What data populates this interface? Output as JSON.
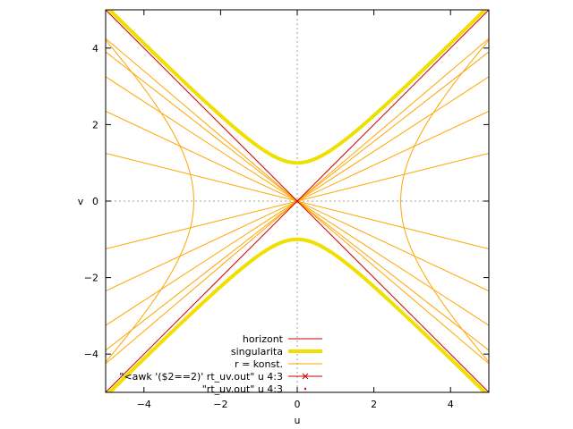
{
  "chart_data": {
    "type": "line",
    "title": "",
    "xlabel": "u",
    "ylabel": "v",
    "xlim": [
      -5,
      5
    ],
    "ylim": [
      -5,
      5
    ],
    "xticks": [
      -4,
      -2,
      0,
      2,
      4
    ],
    "yticks": [
      -4,
      -2,
      0,
      2,
      4
    ],
    "xtick_labels": [
      "−4",
      "−2",
      "0",
      "2",
      "4"
    ],
    "ytick_labels": [
      "−4",
      "−2",
      "0",
      "2",
      "4"
    ],
    "zero_axes": "dotted",
    "grid": false,
    "legend_position": "bottom-center",
    "series": [
      {
        "name": "horizont",
        "color": "#cc0000",
        "description": "lines v = u and v = -u",
        "slopes": [
          1,
          -1
        ]
      },
      {
        "name": "singularita",
        "color": "#f0e000",
        "description": "hyperbola v^2 - u^2 = 1",
        "c_squared": 1
      },
      {
        "name": "r = konst.",
        "color": "#ffa500",
        "description": "constant-r hyperbolas u^2 - v^2 = c^2 plus constant-t lines through origin",
        "hyperbola_c": 2.7,
        "line_slopes": [
          0.25,
          0.47,
          0.65,
          0.78,
          0.85,
          -0.25,
          -0.47,
          -0.65,
          -0.78,
          -0.85
        ]
      },
      {
        "name": "\"<awk '($2==2)' rt_uv.out\" u 4:3",
        "color": "#cc0000",
        "marker": "x",
        "points": [
          [
            0,
            0
          ]
        ]
      },
      {
        "name": "\"rt_uv.out\"          u 4:3",
        "color": "#cc0000",
        "marker": "dot",
        "points": [
          [
            0,
            0
          ]
        ]
      }
    ],
    "legend": [
      {
        "label": "horizont",
        "style": "line",
        "color": "#cc0000",
        "width": 1
      },
      {
        "label": "singularita",
        "style": "line",
        "color": "#f0e000",
        "width": 4
      },
      {
        "label": "r = konst.",
        "style": "line",
        "color": "#ffa500",
        "width": 1
      },
      {
        "label": "\"<awk '($2==2)' rt_uv.out\" u 4:3",
        "style": "line-x",
        "color": "#cc0000",
        "width": 1
      },
      {
        "label": "\"rt_uv.out\"          u 4:3",
        "style": "dot",
        "color": "#cc0000",
        "width": 1
      }
    ]
  }
}
